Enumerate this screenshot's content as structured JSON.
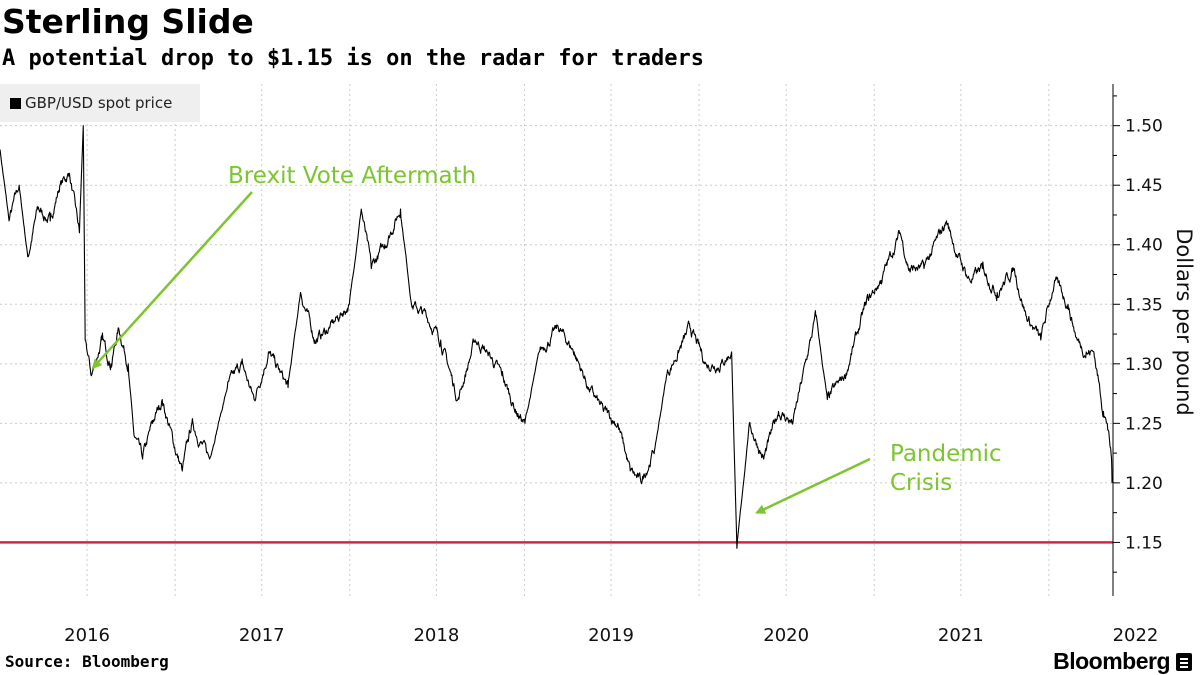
{
  "title": "Sterling Slide",
  "subtitle": "A potential drop to $1.15 is on the radar for traders",
  "source": "Source: Bloomberg",
  "brand": "Bloomberg",
  "colors": {
    "series": "#000000",
    "reference_line": "#d6224b",
    "annotation": "#7cc52f",
    "grid": "#cccccc",
    "legend_bg": "#efefef"
  },
  "chart_data": {
    "type": "line",
    "legend": "GBP/USD spot price",
    "legend_position": "top-left",
    "ylabel": "Dollars per pound",
    "ylim": [
      1.105,
      1.535
    ],
    "yticks": [
      1.15,
      1.2,
      1.25,
      1.3,
      1.35,
      1.4,
      1.45,
      1.5
    ],
    "ytick_labels": [
      "1.15",
      "1.20",
      "1.25",
      "1.30",
      "1.35",
      "1.40",
      "1.45",
      "1.50"
    ],
    "xlim": [
      "2016-01-01",
      "2022-05-15"
    ],
    "xticks": [
      "2016",
      "2017",
      "2018",
      "2019",
      "2020",
      "2021",
      "2022"
    ],
    "grid": true,
    "y_axis_side": "right",
    "reference_line": {
      "value": 1.15
    },
    "annotations": [
      {
        "text": "Brexit Vote Aftermath",
        "date": "2016-07-01",
        "value": 1.3
      },
      {
        "lines": [
          "Pandemic",
          "Crisis"
        ],
        "date": "2020-03-20",
        "value": 1.175
      }
    ],
    "series": [
      {
        "name": "GBP/USD spot price",
        "points": [
          [
            "2016-01-01",
            1.48
          ],
          [
            "2016-01-20",
            1.42
          ],
          [
            "2016-02-10",
            1.45
          ],
          [
            "2016-02-28",
            1.39
          ],
          [
            "2016-03-20",
            1.43
          ],
          [
            "2016-04-15",
            1.42
          ],
          [
            "2016-05-05",
            1.45
          ],
          [
            "2016-05-25",
            1.46
          ],
          [
            "2016-06-15",
            1.41
          ],
          [
            "2016-06-23",
            1.5
          ],
          [
            "2016-06-27",
            1.32
          ],
          [
            "2016-07-10",
            1.29
          ],
          [
            "2016-08-01",
            1.32
          ],
          [
            "2016-08-20",
            1.3
          ],
          [
            "2016-09-05",
            1.33
          ],
          [
            "2016-09-25",
            1.3
          ],
          [
            "2016-10-07",
            1.24
          ],
          [
            "2016-10-25",
            1.22
          ],
          [
            "2016-11-15",
            1.25
          ],
          [
            "2016-12-05",
            1.27
          ],
          [
            "2016-12-31",
            1.23
          ],
          [
            "2017-01-16",
            1.21
          ],
          [
            "2017-02-05",
            1.25
          ],
          [
            "2017-03-14",
            1.22
          ],
          [
            "2017-04-20",
            1.28
          ],
          [
            "2017-05-20",
            1.3
          ],
          [
            "2017-06-15",
            1.27
          ],
          [
            "2017-07-15",
            1.31
          ],
          [
            "2017-08-25",
            1.28
          ],
          [
            "2017-09-20",
            1.36
          ],
          [
            "2017-10-20",
            1.32
          ],
          [
            "2017-11-20",
            1.33
          ],
          [
            "2017-12-31",
            1.35
          ],
          [
            "2018-01-25",
            1.43
          ],
          [
            "2018-02-15",
            1.38
          ],
          [
            "2018-03-15",
            1.4
          ],
          [
            "2018-04-17",
            1.43
          ],
          [
            "2018-05-10",
            1.35
          ],
          [
            "2018-06-10",
            1.34
          ],
          [
            "2018-07-10",
            1.32
          ],
          [
            "2018-08-15",
            1.27
          ],
          [
            "2018-09-20",
            1.32
          ],
          [
            "2018-10-15",
            1.31
          ],
          [
            "2018-11-15",
            1.29
          ],
          [
            "2018-12-15",
            1.26
          ],
          [
            "2019-01-02",
            1.25
          ],
          [
            "2019-02-01",
            1.31
          ],
          [
            "2019-03-13",
            1.33
          ],
          [
            "2019-04-15",
            1.31
          ],
          [
            "2019-05-15",
            1.28
          ],
          [
            "2019-06-15",
            1.26
          ],
          [
            "2019-07-15",
            1.25
          ],
          [
            "2019-08-10",
            1.21
          ],
          [
            "2019-09-02",
            1.2
          ],
          [
            "2019-10-01",
            1.23
          ],
          [
            "2019-10-25",
            1.29
          ],
          [
            "2019-12-13",
            1.33
          ],
          [
            "2020-01-15",
            1.3
          ],
          [
            "2020-02-15",
            1.3
          ],
          [
            "2020-03-09",
            1.31
          ],
          [
            "2020-03-20",
            1.145
          ],
          [
            "2020-04-15",
            1.25
          ],
          [
            "2020-05-15",
            1.22
          ],
          [
            "2020-06-15",
            1.26
          ],
          [
            "2020-07-15",
            1.25
          ],
          [
            "2020-09-01",
            1.34
          ],
          [
            "2020-09-25",
            1.27
          ],
          [
            "2020-11-01",
            1.29
          ],
          [
            "2020-12-15",
            1.35
          ],
          [
            "2021-01-15",
            1.37
          ],
          [
            "2021-02-24",
            1.41
          ],
          [
            "2021-03-15",
            1.38
          ],
          [
            "2021-04-15",
            1.38
          ],
          [
            "2021-06-01",
            1.42
          ],
          [
            "2021-06-25",
            1.39
          ],
          [
            "2021-07-20",
            1.37
          ],
          [
            "2021-08-15",
            1.38
          ],
          [
            "2021-09-15",
            1.36
          ],
          [
            "2021-10-20",
            1.38
          ],
          [
            "2021-11-15",
            1.34
          ],
          [
            "2021-12-15",
            1.32
          ],
          [
            "2022-01-13",
            1.37
          ],
          [
            "2022-02-10",
            1.35
          ],
          [
            "2022-03-01",
            1.32
          ],
          [
            "2022-03-20",
            1.31
          ],
          [
            "2022-04-05",
            1.31
          ],
          [
            "2022-04-25",
            1.26
          ],
          [
            "2022-04-29",
            1.255
          ],
          [
            "2022-05-03",
            1.25
          ],
          [
            "2022-05-09",
            1.23
          ],
          [
            "2022-05-12",
            1.22
          ],
          [
            "2022-05-13",
            1.2
          ]
        ]
      }
    ]
  }
}
